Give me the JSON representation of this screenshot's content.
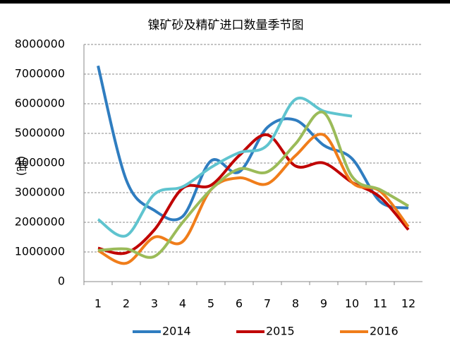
{
  "chart_data": {
    "type": "line",
    "title": "镍矿砂及精矿进口数量季节图",
    "y_label": "(吨)",
    "categories": [
      "1",
      "2",
      "3",
      "4",
      "5",
      "6",
      "7",
      "8",
      "9",
      "10",
      "11",
      "12"
    ],
    "ylim": [
      0,
      8000000
    ],
    "yticks": [
      0,
      1000000,
      2000000,
      3000000,
      4000000,
      5000000,
      6000000,
      7000000,
      8000000
    ],
    "grid": true,
    "legend": "bottom",
    "smooth": true,
    "series": [
      {
        "name": "2014",
        "color": "#2f7dc0",
        "values": [
          7280000,
          3430000,
          2400000,
          2200000,
          4070000,
          3700000,
          5200000,
          5450000,
          4600000,
          4150000,
          2700000,
          2480000
        ]
      },
      {
        "name": "2015",
        "color": "#c00000",
        "values": [
          1130000,
          970000,
          1750000,
          3150000,
          3250000,
          4250000,
          4950000,
          3900000,
          4000000,
          3350000,
          2850000,
          1750000
        ]
      },
      {
        "name": "2016",
        "color": "#f07d1a",
        "values": [
          1050000,
          620000,
          1500000,
          1350000,
          3100000,
          3500000,
          3300000,
          4250000,
          4950000,
          3350000,
          3050000,
          1850000
        ]
      },
      {
        "color": "#5fc4cf",
        "values": [
          2100000,
          1550000,
          2950000,
          3200000,
          3850000,
          4350000,
          4600000,
          6150000,
          5750000,
          5580000,
          null,
          null
        ]
      },
      {
        "color": "#9bbb59",
        "values": [
          1050000,
          1100000,
          850000,
          2000000,
          3100000,
          3800000,
          3700000,
          4650000,
          5700000,
          3550000,
          3100000,
          2550000
        ]
      }
    ]
  }
}
